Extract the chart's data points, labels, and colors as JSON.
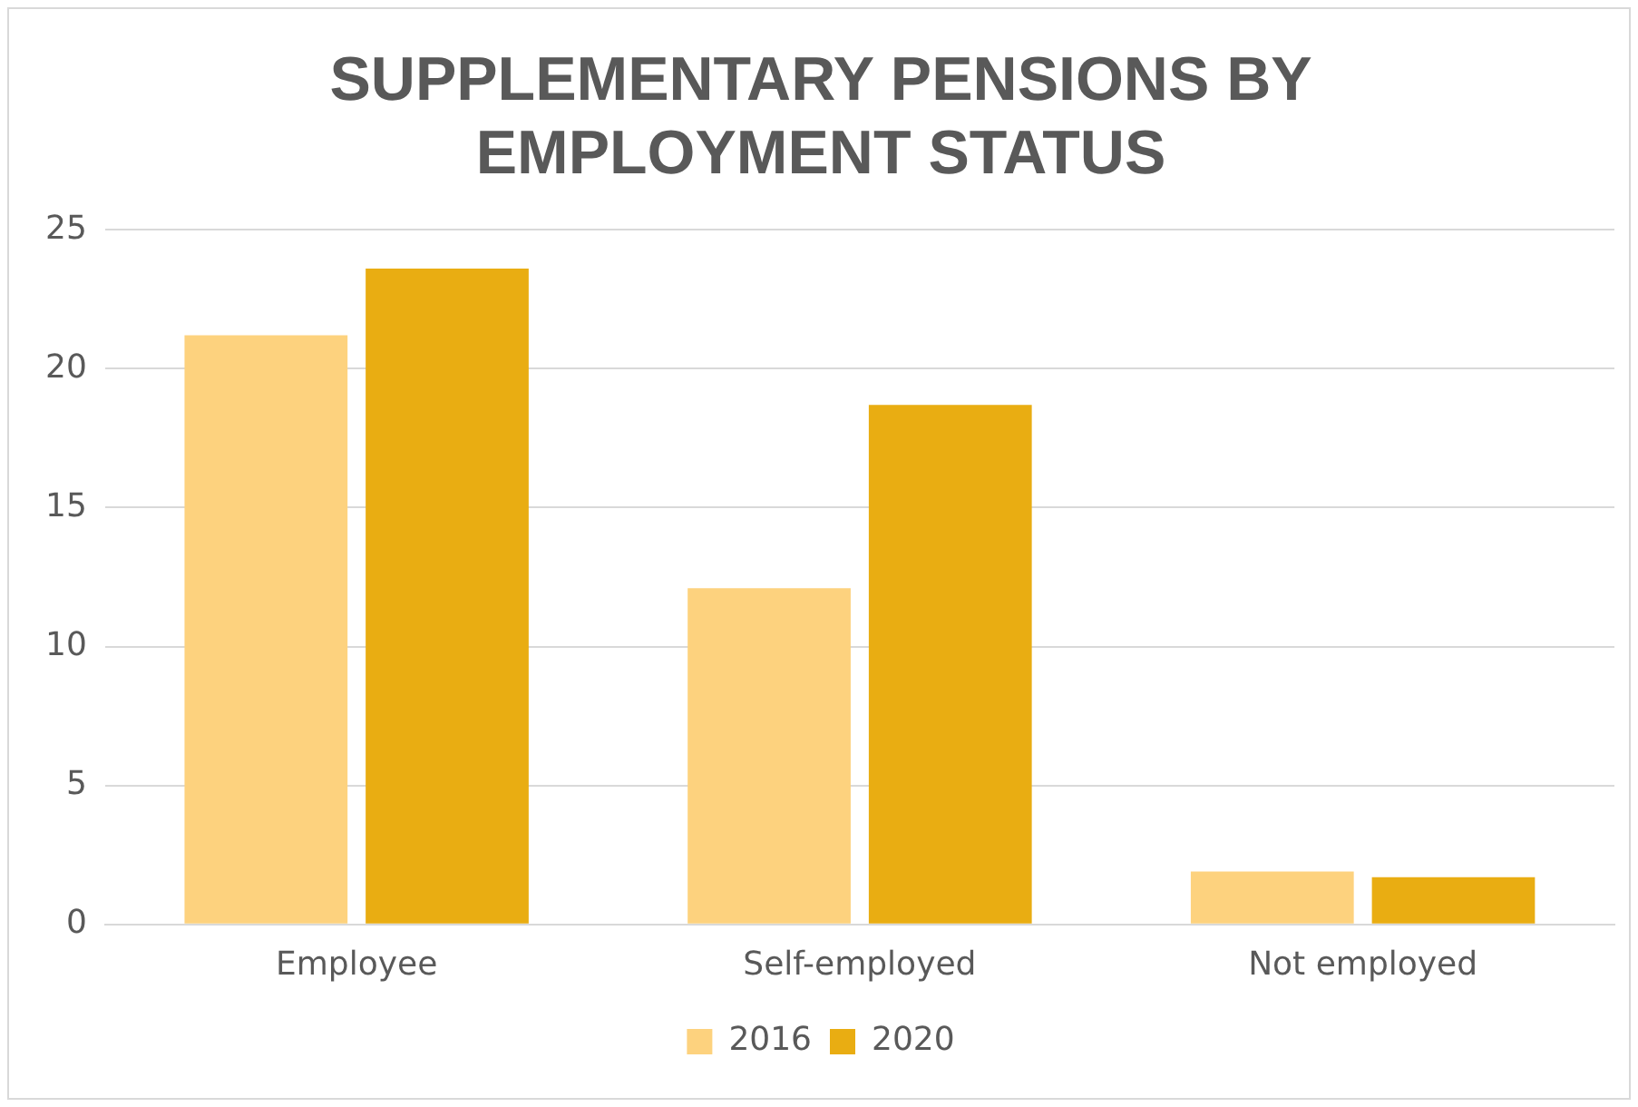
{
  "chart_data": {
    "type": "bar",
    "title": "SUPPLEMENTARY PENSIONS BY EMPLOYMENT STATUS",
    "categories": [
      "Employee",
      "Self-employed",
      "Not employed"
    ],
    "series": [
      {
        "name": "2016",
        "color": "#fdd27e",
        "values": [
          21.2,
          12.1,
          1.9
        ]
      },
      {
        "name": "2020",
        "color": "#e9ad12",
        "values": [
          23.6,
          18.7,
          1.7
        ]
      }
    ],
    "ylim": [
      0,
      25
    ],
    "yticks": [
      0,
      5,
      10,
      15,
      20,
      25
    ],
    "grid": "y",
    "legend": "bottom"
  }
}
